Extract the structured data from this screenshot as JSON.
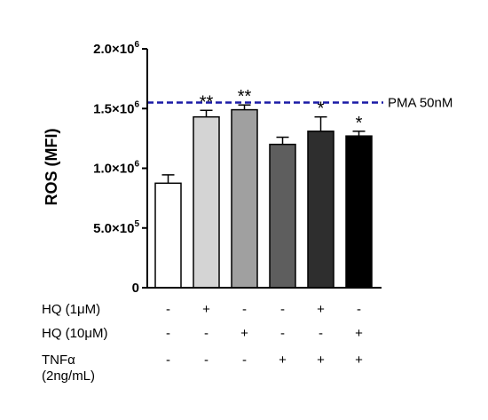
{
  "chart_data": {
    "type": "bar",
    "ylabel": "ROS (MFI)",
    "ylim": [
      0,
      2000000
    ],
    "y_ticks": [
      {
        "value": 0,
        "base": "0",
        "exp": ""
      },
      {
        "value": 500000,
        "base": "5.0×10",
        "exp": "5"
      },
      {
        "value": 1000000,
        "base": "1.0×10",
        "exp": "6"
      },
      {
        "value": 1500000,
        "base": "1.5×10",
        "exp": "6"
      },
      {
        "value": 2000000,
        "base": "2.0×10",
        "exp": "6"
      }
    ],
    "values": [
      875000,
      1430000,
      1490000,
      1200000,
      1310000,
      1270000
    ],
    "errors": [
      70000,
      55000,
      40000,
      60000,
      120000,
      40000
    ],
    "significance": [
      "",
      "**",
      "**",
      "",
      "*",
      "*"
    ],
    "bar_colors": [
      "#ffffff",
      "#d4d4d4",
      "#a0a0a0",
      "#5e5e5e",
      "#2e2e2e",
      "#000000"
    ],
    "reference_line": {
      "value": 1550000,
      "label": "PMA 50nM",
      "color": "#1a1aa6"
    },
    "condition_rows": [
      {
        "label": "HQ (1μM)",
        "marks": [
          "-",
          "+",
          "-",
          "-",
          "+",
          "-"
        ]
      },
      {
        "label": "HQ (10μM)",
        "marks": [
          "-",
          "-",
          "+",
          "-",
          "-",
          "+"
        ]
      },
      {
        "label": "TNFα",
        "label2": "(2ng/mL)",
        "marks": [
          "-",
          "-",
          "-",
          "+",
          "+",
          "+"
        ]
      }
    ]
  }
}
